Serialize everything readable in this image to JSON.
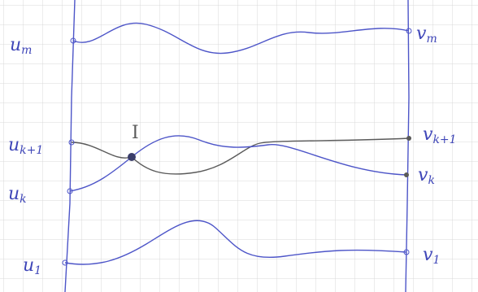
{
  "left_labels": [
    {
      "base": "u",
      "sub": "m"
    },
    {
      "base": "u",
      "sub": "k+1"
    },
    {
      "base": "u",
      "sub": "k"
    },
    {
      "base": "u",
      "sub": "1"
    }
  ],
  "right_labels": [
    {
      "base": "v",
      "sub": "m"
    },
    {
      "base": "v",
      "sub": "k+1"
    },
    {
      "base": "v",
      "sub": "k"
    },
    {
      "base": "v",
      "sub": "1"
    }
  ],
  "intersection_label": "I"
}
